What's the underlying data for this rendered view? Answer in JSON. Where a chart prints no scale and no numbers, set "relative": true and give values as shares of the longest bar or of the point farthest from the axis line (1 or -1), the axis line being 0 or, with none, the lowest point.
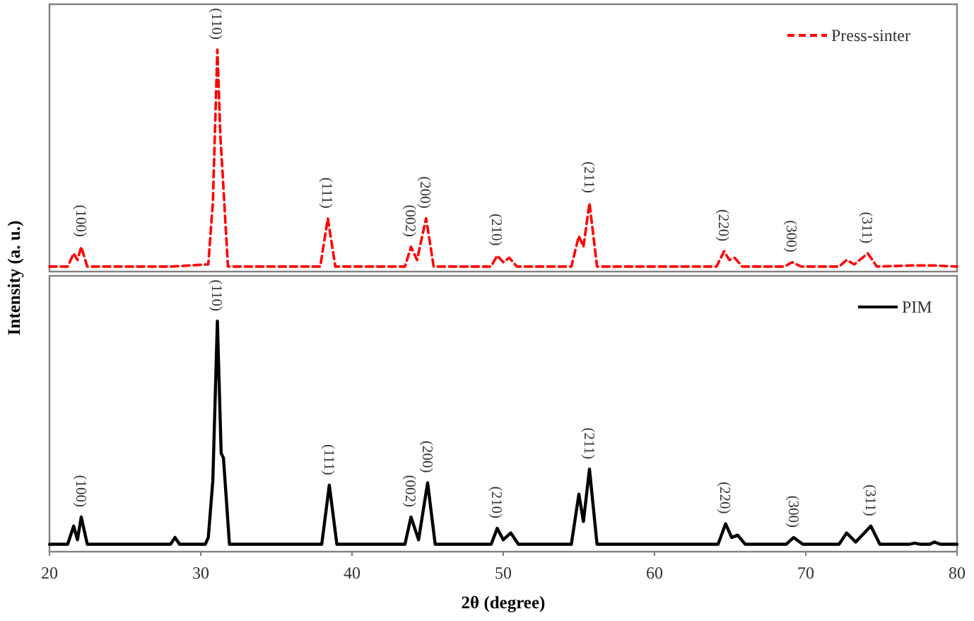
{
  "chart_data": [
    {
      "type": "line",
      "relative": true,
      "xlim": [
        20,
        80
      ],
      "tick_labels": false,
      "ylabel": "Intensity (a. u.)",
      "legend": "top right",
      "line_style": "dashed",
      "series": [
        {
          "name": "Press-sinter",
          "color": "#ff0000",
          "x": [
            20,
            21.2,
            21.6,
            21.85,
            22.1,
            22.5,
            28,
            30.5,
            30.8,
            31.1,
            31.3,
            31.45,
            31.8,
            37.9,
            38.4,
            38.9,
            43.5,
            43.9,
            44.3,
            44.9,
            45.4,
            49.2,
            49.6,
            50.0,
            50.4,
            50.9,
            54.5,
            55.0,
            55.3,
            55.7,
            56.2,
            64.1,
            64.6,
            64.95,
            65.3,
            65.8,
            68.6,
            69.1,
            69.7,
            72.2,
            72.7,
            73.2,
            74.1,
            74.7,
            77.0,
            78.5,
            80
          ],
          "values": [
            0.01,
            0.01,
            0.07,
            0.04,
            0.1,
            0.01,
            0.01,
            0.02,
            0.3,
            1,
            0.6,
            0.43,
            0.01,
            0.01,
            0.23,
            0.01,
            0.01,
            0.1,
            0.04,
            0.23,
            0.01,
            0.01,
            0.06,
            0.03,
            0.05,
            0.01,
            0.01,
            0.15,
            0.1,
            0.3,
            0.01,
            0.01,
            0.08,
            0.04,
            0.05,
            0.01,
            0.01,
            0.03,
            0.01,
            0.01,
            0.04,
            0.02,
            0.07,
            0.01,
            0.015,
            0.015,
            0.01
          ]
        }
      ],
      "annotations": [
        {
          "text": "(100)",
          "x": 22.1,
          "y": 0.1
        },
        {
          "text": "(110)",
          "x": 31.1,
          "y": 1
        },
        {
          "text": "(111)",
          "x": 38.4,
          "y": 0.23
        },
        {
          "text": "(002)",
          "x": 43.9,
          "y": 0.1
        },
        {
          "text": "(200)",
          "x": 44.9,
          "y": 0.23
        },
        {
          "text": "(210)",
          "x": 49.6,
          "y": 0.06
        },
        {
          "text": "(211)",
          "x": 55.7,
          "y": 0.3
        },
        {
          "text": "(220)",
          "x": 64.6,
          "y": 0.08
        },
        {
          "text": "(300)",
          "x": 69.1,
          "y": 0.03
        },
        {
          "text": "(311)",
          "x": 74.1,
          "y": 0.07
        }
      ]
    },
    {
      "type": "line",
      "relative": true,
      "xlim": [
        20,
        80
      ],
      "xticks": [
        20,
        30,
        40,
        50,
        60,
        70,
        80
      ],
      "tick_labels": "x",
      "xlabel": "2θ (degree)",
      "legend": "top right",
      "line_style": "solid",
      "series": [
        {
          "name": "PIM",
          "color": "#000000",
          "x": [
            20,
            21.2,
            21.6,
            21.85,
            22.1,
            22.5,
            28,
            28.3,
            28.6,
            30.3,
            30.5,
            30.8,
            31.1,
            31.35,
            31.5,
            31.9,
            38.0,
            38.5,
            39.0,
            43.5,
            43.9,
            44.4,
            45.0,
            45.5,
            49.2,
            49.6,
            50.0,
            50.5,
            51.0,
            54.5,
            55.0,
            55.3,
            55.7,
            56.2,
            64.2,
            64.7,
            65.1,
            65.5,
            66.0,
            68.7,
            69.2,
            69.8,
            72.2,
            72.7,
            73.3,
            74.3,
            74.9,
            76.8,
            77.2,
            77.6,
            78.2,
            78.5,
            78.9,
            80
          ],
          "values": [
            0.02,
            0.02,
            0.1,
            0.04,
            0.14,
            0.02,
            0.02,
            0.05,
            0.02,
            0.02,
            0.05,
            0.3,
            1,
            0.42,
            0.4,
            0.02,
            0.02,
            0.28,
            0.02,
            0.02,
            0.14,
            0.04,
            0.29,
            0.02,
            0.02,
            0.09,
            0.04,
            0.07,
            0.02,
            0.02,
            0.24,
            0.12,
            0.35,
            0.02,
            0.02,
            0.11,
            0.05,
            0.06,
            0.02,
            0.02,
            0.05,
            0.02,
            0.02,
            0.07,
            0.03,
            0.1,
            0.02,
            0.02,
            0.025,
            0.02,
            0.02,
            0.03,
            0.02,
            0.02
          ]
        }
      ],
      "annotations": [
        {
          "text": "(100)",
          "x": 22.1,
          "y": 0.14
        },
        {
          "text": "(110)",
          "x": 31.1,
          "y": 1
        },
        {
          "text": "(111)",
          "x": 38.5,
          "y": 0.28
        },
        {
          "text": "(002)",
          "x": 43.9,
          "y": 0.14
        },
        {
          "text": "(200)",
          "x": 45.0,
          "y": 0.29
        },
        {
          "text": "(210)",
          "x": 49.6,
          "y": 0.09
        },
        {
          "text": "(211)",
          "x": 55.7,
          "y": 0.35
        },
        {
          "text": "(220)",
          "x": 64.7,
          "y": 0.11
        },
        {
          "text": "(300)",
          "x": 69.2,
          "y": 0.05
        },
        {
          "text": "(311)",
          "x": 74.3,
          "y": 0.1
        }
      ]
    }
  ]
}
